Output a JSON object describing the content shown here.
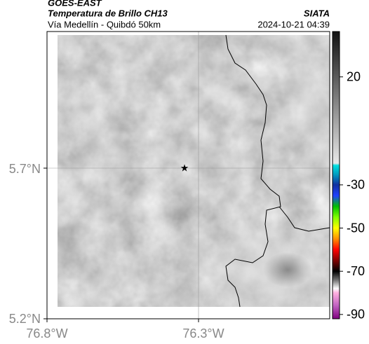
{
  "header": {
    "source": "GOES-EAST",
    "title": "Temperatura de Brillo CH13",
    "subtitle": "Vía Medellín - Quibdó 50km",
    "agency": "SIATA",
    "timestamp": "2024-10-21 04:39"
  },
  "map": {
    "lat_labels": [
      "5.7°N",
      "5.2°N"
    ],
    "lon_labels": [
      "76.8°W",
      "76.3°W"
    ]
  },
  "colorbar": {
    "lim": [
      -92,
      41
    ],
    "ticks": [
      20,
      -30,
      -50,
      -70,
      -90
    ],
    "stops": [
      {
        "value": 41,
        "color": "#111111"
      },
      {
        "value": -20,
        "color": "#e8e8e8"
      },
      {
        "value": -21,
        "color": "#00e0e0"
      },
      {
        "value": -25,
        "color": "#00a0c0"
      },
      {
        "value": -30,
        "color": "#1030a0"
      },
      {
        "value": -35,
        "color": "#2040ff"
      },
      {
        "value": -40,
        "color": "#00c000"
      },
      {
        "value": -45,
        "color": "#80ff00"
      },
      {
        "value": -50,
        "color": "#ffff00"
      },
      {
        "value": -55,
        "color": "#ff9000"
      },
      {
        "value": -60,
        "color": "#ff0000"
      },
      {
        "value": -65,
        "color": "#800000"
      },
      {
        "value": -70,
        "color": "#000000"
      },
      {
        "value": -74,
        "color": "#707070"
      },
      {
        "value": -78,
        "color": "#ffffff"
      },
      {
        "value": -80,
        "color": "#ffb0e0"
      },
      {
        "value": -86,
        "color": "#c060c0"
      },
      {
        "value": -92,
        "color": "#800080"
      }
    ]
  }
}
